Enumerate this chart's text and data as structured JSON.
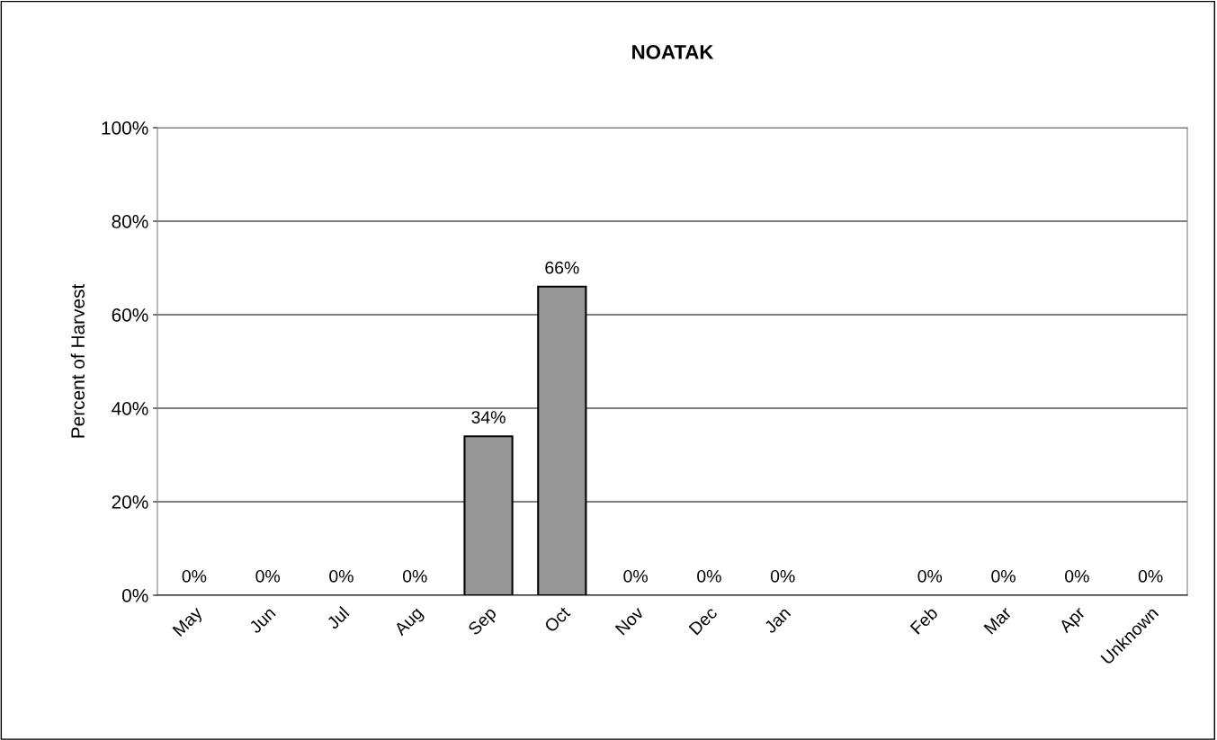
{
  "chart_data": {
    "type": "bar",
    "title": "NOATAK",
    "ylabel": "Percent of Harvest",
    "categories": [
      "May",
      "Jun",
      "Jul",
      "Aug",
      "Sep",
      "Oct",
      "Nov",
      "Dec",
      "Jan",
      null,
      "Feb",
      "Mar",
      "Apr",
      "Unknown"
    ],
    "values": [
      0,
      0,
      0,
      0,
      34,
      66,
      0,
      0,
      0,
      null,
      0,
      0,
      0,
      0
    ],
    "value_labels": [
      "0%",
      "0%",
      "0%",
      "0%",
      "34%",
      "66%",
      "0%",
      "0%",
      "0%",
      null,
      "0%",
      "0%",
      "0%",
      "0%"
    ],
    "color": "#969696",
    "ylim": [
      0,
      100
    ],
    "yticks": [
      {
        "value": 0,
        "label": "0%"
      },
      {
        "value": 20,
        "label": "20%"
      },
      {
        "value": 40,
        "label": "40%"
      },
      {
        "value": 60,
        "label": "60%"
      },
      {
        "value": 80,
        "label": "80%"
      },
      {
        "value": 100,
        "label": "100%"
      }
    ],
    "grid": "y",
    "legend": false
  }
}
